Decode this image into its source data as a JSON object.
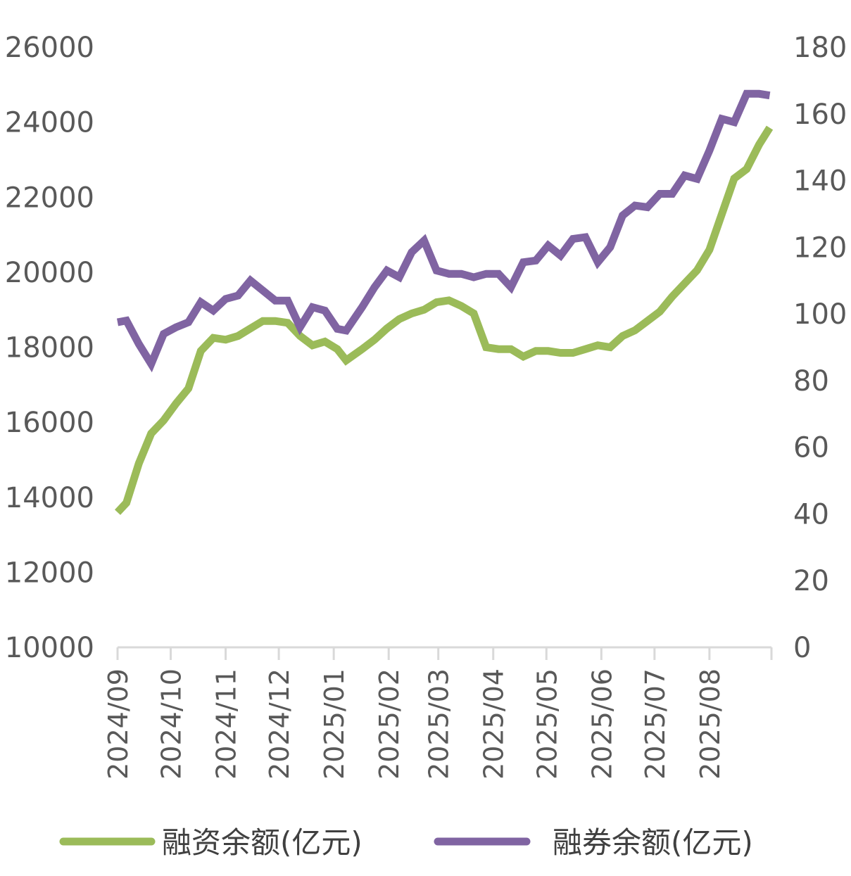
{
  "chart_data": {
    "type": "line",
    "title": "",
    "xlabel": "",
    "ylabel": "",
    "y_left": {
      "min": 10000,
      "max": 26000,
      "ticks": [
        10000,
        12000,
        14000,
        16000,
        18000,
        20000,
        22000,
        24000,
        26000
      ]
    },
    "y_right": {
      "min": 0,
      "max": 180,
      "ticks": [
        0,
        20,
        40,
        60,
        80,
        100,
        120,
        140,
        160,
        180
      ]
    },
    "x_ticks": [
      "2024/09",
      "2024/10",
      "2024/11",
      "2024/12",
      "2025/01",
      "2025/02",
      "2025/03",
      "2025/04",
      "2025/05",
      "2025/06",
      "2025/07",
      "2025/08"
    ],
    "grid": false,
    "legend_position": "bottom",
    "series": [
      {
        "name": "融资余额(亿元)",
        "axis": "left",
        "color": "#9BBB59",
        "points": [
          [
            "2024-09-01",
            13600
          ],
          [
            "2024-09-06",
            13850
          ],
          [
            "2024-09-13",
            14900
          ],
          [
            "2024-09-20",
            15700
          ],
          [
            "2024-09-27",
            16050
          ],
          [
            "2024-10-04",
            16500
          ],
          [
            "2024-10-11",
            16900
          ],
          [
            "2024-10-18",
            17900
          ],
          [
            "2024-10-25",
            18250
          ],
          [
            "2024-11-01",
            18200
          ],
          [
            "2024-11-08",
            18300
          ],
          [
            "2024-11-15",
            18500
          ],
          [
            "2024-11-22",
            18700
          ],
          [
            "2024-11-29",
            18700
          ],
          [
            "2024-12-06",
            18650
          ],
          [
            "2024-12-13",
            18300
          ],
          [
            "2024-12-20",
            18050
          ],
          [
            "2024-12-27",
            18150
          ],
          [
            "2025-01-03",
            17950
          ],
          [
            "2025-01-08",
            17650
          ],
          [
            "2025-01-17",
            17950
          ],
          [
            "2025-01-24",
            18200
          ],
          [
            "2025-01-31",
            18500
          ],
          [
            "2025-02-07",
            18750
          ],
          [
            "2025-02-14",
            18900
          ],
          [
            "2025-02-21",
            19000
          ],
          [
            "2025-02-28",
            19200
          ],
          [
            "2025-03-07",
            19250
          ],
          [
            "2025-03-14",
            19100
          ],
          [
            "2025-03-21",
            18900
          ],
          [
            "2025-03-28",
            18000
          ],
          [
            "2025-04-04",
            17950
          ],
          [
            "2025-04-11",
            17950
          ],
          [
            "2025-04-18",
            17750
          ],
          [
            "2025-04-25",
            17900
          ],
          [
            "2025-05-02",
            17900
          ],
          [
            "2025-05-09",
            17850
          ],
          [
            "2025-05-16",
            17850
          ],
          [
            "2025-05-23",
            17950
          ],
          [
            "2025-05-30",
            18050
          ],
          [
            "2025-06-06",
            18000
          ],
          [
            "2025-06-13",
            18300
          ],
          [
            "2025-06-20",
            18450
          ],
          [
            "2025-06-27",
            18700
          ],
          [
            "2025-07-04",
            18950
          ],
          [
            "2025-07-11",
            19350
          ],
          [
            "2025-07-18",
            19700
          ],
          [
            "2025-07-25",
            20050
          ],
          [
            "2025-08-01",
            20600
          ],
          [
            "2025-08-08",
            21550
          ],
          [
            "2025-08-15",
            22500
          ],
          [
            "2025-08-22",
            22750
          ],
          [
            "2025-08-29",
            23400
          ],
          [
            "2025-09-04",
            23850
          ]
        ]
      },
      {
        "name": "融券余额(亿元)",
        "axis": "right",
        "color": "#8064A2",
        "points": [
          [
            "2024-09-01",
            97.5
          ],
          [
            "2024-09-06",
            98
          ],
          [
            "2024-09-13",
            91
          ],
          [
            "2024-09-20",
            85
          ],
          [
            "2024-09-27",
            94
          ],
          [
            "2024-10-04",
            96
          ],
          [
            "2024-10-11",
            97.5
          ],
          [
            "2024-10-18",
            103.5
          ],
          [
            "2024-10-25",
            101
          ],
          [
            "2024-11-01",
            104.5
          ],
          [
            "2024-11-08",
            105.5
          ],
          [
            "2024-11-15",
            110
          ],
          [
            "2024-11-22",
            107
          ],
          [
            "2024-11-29",
            104
          ],
          [
            "2024-12-06",
            104
          ],
          [
            "2024-12-13",
            96
          ],
          [
            "2024-12-20",
            102
          ],
          [
            "2024-12-27",
            101
          ],
          [
            "2025-01-03",
            95.5
          ],
          [
            "2025-01-08",
            95
          ],
          [
            "2025-01-17",
            102
          ],
          [
            "2025-01-24",
            108
          ],
          [
            "2025-01-31",
            113
          ],
          [
            "2025-02-07",
            111
          ],
          [
            "2025-02-14",
            118.5
          ],
          [
            "2025-02-21",
            122
          ],
          [
            "2025-02-28",
            113
          ],
          [
            "2025-03-07",
            112
          ],
          [
            "2025-03-14",
            112
          ],
          [
            "2025-03-21",
            111
          ],
          [
            "2025-03-28",
            112
          ],
          [
            "2025-04-04",
            112
          ],
          [
            "2025-04-11",
            108
          ],
          [
            "2025-04-18",
            115.5
          ],
          [
            "2025-04-25",
            116
          ],
          [
            "2025-05-02",
            120.5
          ],
          [
            "2025-05-09",
            117.5
          ],
          [
            "2025-05-16",
            122.5
          ],
          [
            "2025-05-23",
            123
          ],
          [
            "2025-05-30",
            115.5
          ],
          [
            "2025-06-06",
            120
          ],
          [
            "2025-06-13",
            129.5
          ],
          [
            "2025-06-20",
            132.5
          ],
          [
            "2025-06-27",
            132
          ],
          [
            "2025-07-04",
            136
          ],
          [
            "2025-07-11",
            136
          ],
          [
            "2025-07-18",
            141.5
          ],
          [
            "2025-07-25",
            140.5
          ],
          [
            "2025-08-01",
            149
          ],
          [
            "2025-08-08",
            158.5
          ],
          [
            "2025-08-15",
            157.5
          ],
          [
            "2025-08-22",
            166
          ],
          [
            "2025-08-29",
            166
          ],
          [
            "2025-09-04",
            165.5
          ]
        ]
      }
    ]
  }
}
